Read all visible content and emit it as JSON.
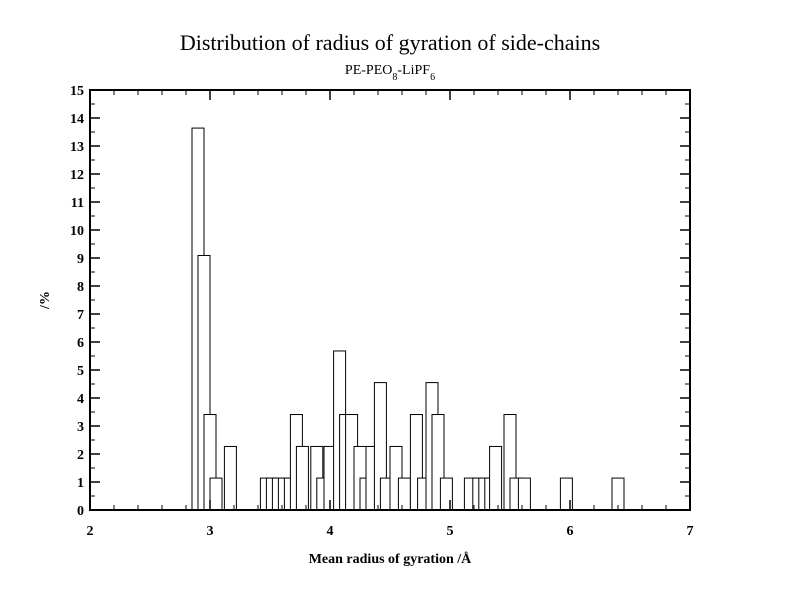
{
  "chart_data": {
    "type": "bar",
    "title": "Distribution of radius of gyration of side-chains",
    "subtitle": {
      "parts": [
        {
          "text": "PE-PEO",
          "sub": false
        },
        {
          "text": "8",
          "sub": true
        },
        {
          "text": "-LiPF",
          "sub": false
        },
        {
          "text": "6",
          "sub": true
        }
      ]
    },
    "xlabel": "Mean radius of gyration /Å",
    "ylabel": "/%",
    "xlim": [
      2,
      7
    ],
    "ylim": [
      0,
      15
    ],
    "x_ticks": [
      2,
      3,
      4,
      5,
      6,
      7
    ],
    "y_ticks": [
      0,
      1,
      2,
      3,
      4,
      5,
      6,
      7,
      8,
      9,
      10,
      11,
      12,
      13,
      14,
      15
    ],
    "bin_width": 0.1,
    "bar_fill": "#ffffff",
    "bar_stroke": "#000000",
    "bins": [
      {
        "x": 2.9,
        "y": 13.64
      },
      {
        "x": 2.95,
        "y": 9.09
      },
      {
        "x": 3.0,
        "y": 3.41
      },
      {
        "x": 3.05,
        "y": 1.14
      },
      {
        "x": 3.17,
        "y": 2.27
      },
      {
        "x": 3.47,
        "y": 1.14
      },
      {
        "x": 3.52,
        "y": 1.14
      },
      {
        "x": 3.57,
        "y": 1.14
      },
      {
        "x": 3.62,
        "y": 1.14
      },
      {
        "x": 3.67,
        "y": 1.14
      },
      {
        "x": 3.72,
        "y": 3.41
      },
      {
        "x": 3.77,
        "y": 2.27
      },
      {
        "x": 3.89,
        "y": 2.27
      },
      {
        "x": 3.94,
        "y": 1.14
      },
      {
        "x": 4.0,
        "y": 2.27
      },
      {
        "x": 4.08,
        "y": 5.68
      },
      {
        "x": 4.13,
        "y": 3.41
      },
      {
        "x": 4.18,
        "y": 3.41
      },
      {
        "x": 4.25,
        "y": 2.27
      },
      {
        "x": 4.3,
        "y": 1.14
      },
      {
        "x": 4.35,
        "y": 2.27
      },
      {
        "x": 4.42,
        "y": 4.55
      },
      {
        "x": 4.47,
        "y": 1.14
      },
      {
        "x": 4.55,
        "y": 2.27
      },
      {
        "x": 4.62,
        "y": 1.14
      },
      {
        "x": 4.72,
        "y": 3.41
      },
      {
        "x": 4.78,
        "y": 1.14
      },
      {
        "x": 4.85,
        "y": 4.55
      },
      {
        "x": 4.9,
        "y": 3.41
      },
      {
        "x": 4.97,
        "y": 1.14
      },
      {
        "x": 5.17,
        "y": 1.14
      },
      {
        "x": 5.24,
        "y": 1.14
      },
      {
        "x": 5.29,
        "y": 1.14
      },
      {
        "x": 5.34,
        "y": 1.14
      },
      {
        "x": 5.38,
        "y": 2.27
      },
      {
        "x": 5.5,
        "y": 3.41
      },
      {
        "x": 5.55,
        "y": 1.14
      },
      {
        "x": 5.62,
        "y": 1.14
      },
      {
        "x": 5.97,
        "y": 1.14
      },
      {
        "x": 6.4,
        "y": 1.14
      }
    ]
  }
}
